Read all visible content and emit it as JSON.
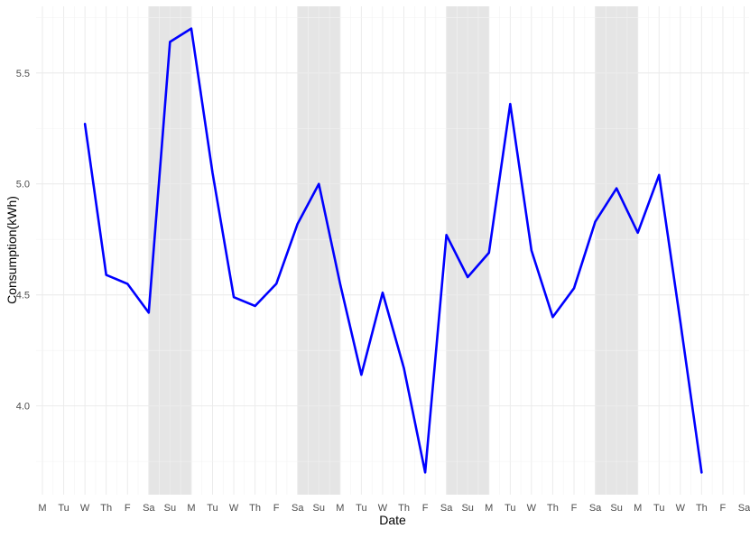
{
  "chart_data": {
    "type": "line",
    "xlabel": "Date",
    "ylabel": "Consumption(kWh)",
    "grid": true,
    "colors": {
      "line": "#0000ff",
      "weekend_band": "#e5e5e5",
      "grid_major": "#ebebeb",
      "grid_minor": "#f3f3f3",
      "tick_text": "#4d4d4d",
      "axis_title": "#000000"
    },
    "x_tick_labels": [
      "M",
      "Tu",
      "W",
      "Th",
      "F",
      "Sa",
      "Su",
      "M",
      "Tu",
      "W",
      "Th",
      "F",
      "Sa",
      "Su",
      "M",
      "Tu",
      "W",
      "Th",
      "F",
      "Sa",
      "Su",
      "M",
      "Tu",
      "W",
      "Th",
      "F",
      "Sa",
      "Su",
      "M",
      "Tu",
      "W",
      "Th",
      "F",
      "Sa"
    ],
    "xlim": [
      0,
      33
    ],
    "ylim": [
      3.6,
      5.8
    ],
    "y_ticks": [
      4.0,
      4.5,
      5.0,
      5.5
    ],
    "y_tick_labels": [
      "4.0",
      "4.5",
      "5.0",
      "5.5"
    ],
    "weekend_bands": [
      [
        5,
        7
      ],
      [
        12,
        14
      ],
      [
        19,
        21
      ],
      [
        26,
        28
      ]
    ],
    "series": [
      {
        "x": [
          2,
          3,
          4,
          5,
          6,
          7,
          8,
          9,
          10,
          11,
          12,
          13,
          14,
          15,
          16,
          17,
          18,
          19,
          20,
          21,
          22,
          23,
          24,
          25,
          26,
          27,
          28,
          29,
          30,
          31
        ],
        "values": [
          5.27,
          4.59,
          4.55,
          4.42,
          5.64,
          5.7,
          5.05,
          4.49,
          4.45,
          4.55,
          4.82,
          5.0,
          4.55,
          4.14,
          4.51,
          4.17,
          3.7,
          4.77,
          4.58,
          4.69,
          5.36,
          4.7,
          4.4,
          4.53,
          4.83,
          4.98,
          4.78,
          5.04,
          4.38,
          3.7
        ]
      }
    ]
  }
}
